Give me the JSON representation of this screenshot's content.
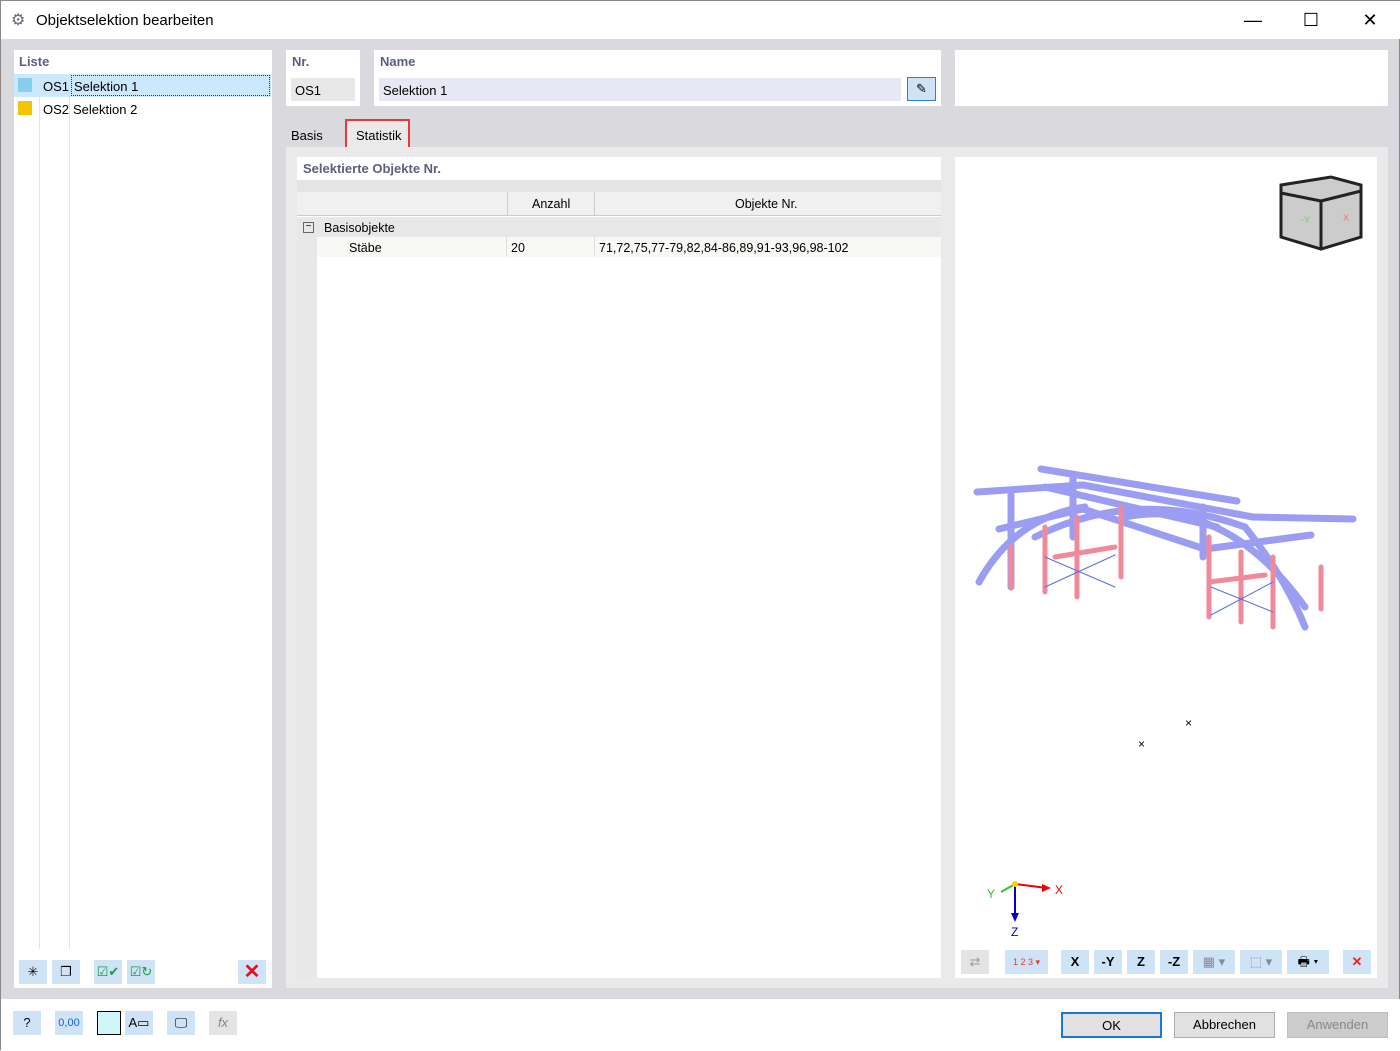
{
  "window": {
    "title": "Objektselektion bearbeiten",
    "minimize": "—",
    "maximize": "☐",
    "close": "✕"
  },
  "list": {
    "header": "Liste",
    "items": [
      {
        "id": "OS1",
        "name": "Selektion 1",
        "color": "#87ceeb",
        "selected": true
      },
      {
        "id": "OS2",
        "name": "Selektion 2",
        "color": "#f5c400",
        "selected": false
      }
    ]
  },
  "nr": {
    "label": "Nr.",
    "value": "OS1"
  },
  "name": {
    "label": "Name",
    "value": "Selektion 1"
  },
  "tabs": [
    {
      "label": "Basis",
      "active": false
    },
    {
      "label": "Statistik",
      "active": true
    }
  ],
  "table": {
    "title": "Selektierte Objekte Nr.",
    "columns": [
      "",
      "Anzahl",
      "Objekte Nr."
    ],
    "group": "Basisobjekte",
    "rows": [
      {
        "label": "Stäbe",
        "count": "20",
        "objects": "71,72,75,77-79,82,84-86,89,91-93,96,98-102"
      }
    ]
  },
  "axes": {
    "x": "X",
    "y": "Y",
    "z": "Z"
  },
  "cube": {
    "face_y": "-Y",
    "face_x": "X"
  },
  "view_toolbar": {
    "numbering": "1 2 3",
    "view_x": "X",
    "view_y": "-Y",
    "view_z": "Z",
    "view_mz": "-Z"
  },
  "list_toolbar": [
    "new-selection",
    "copy-selection",
    "check-all",
    "check-toggle",
    "delete"
  ],
  "footer": {
    "decimals": "0,00",
    "ok": "OK",
    "cancel": "Abbrechen",
    "apply": "Anwenden"
  }
}
